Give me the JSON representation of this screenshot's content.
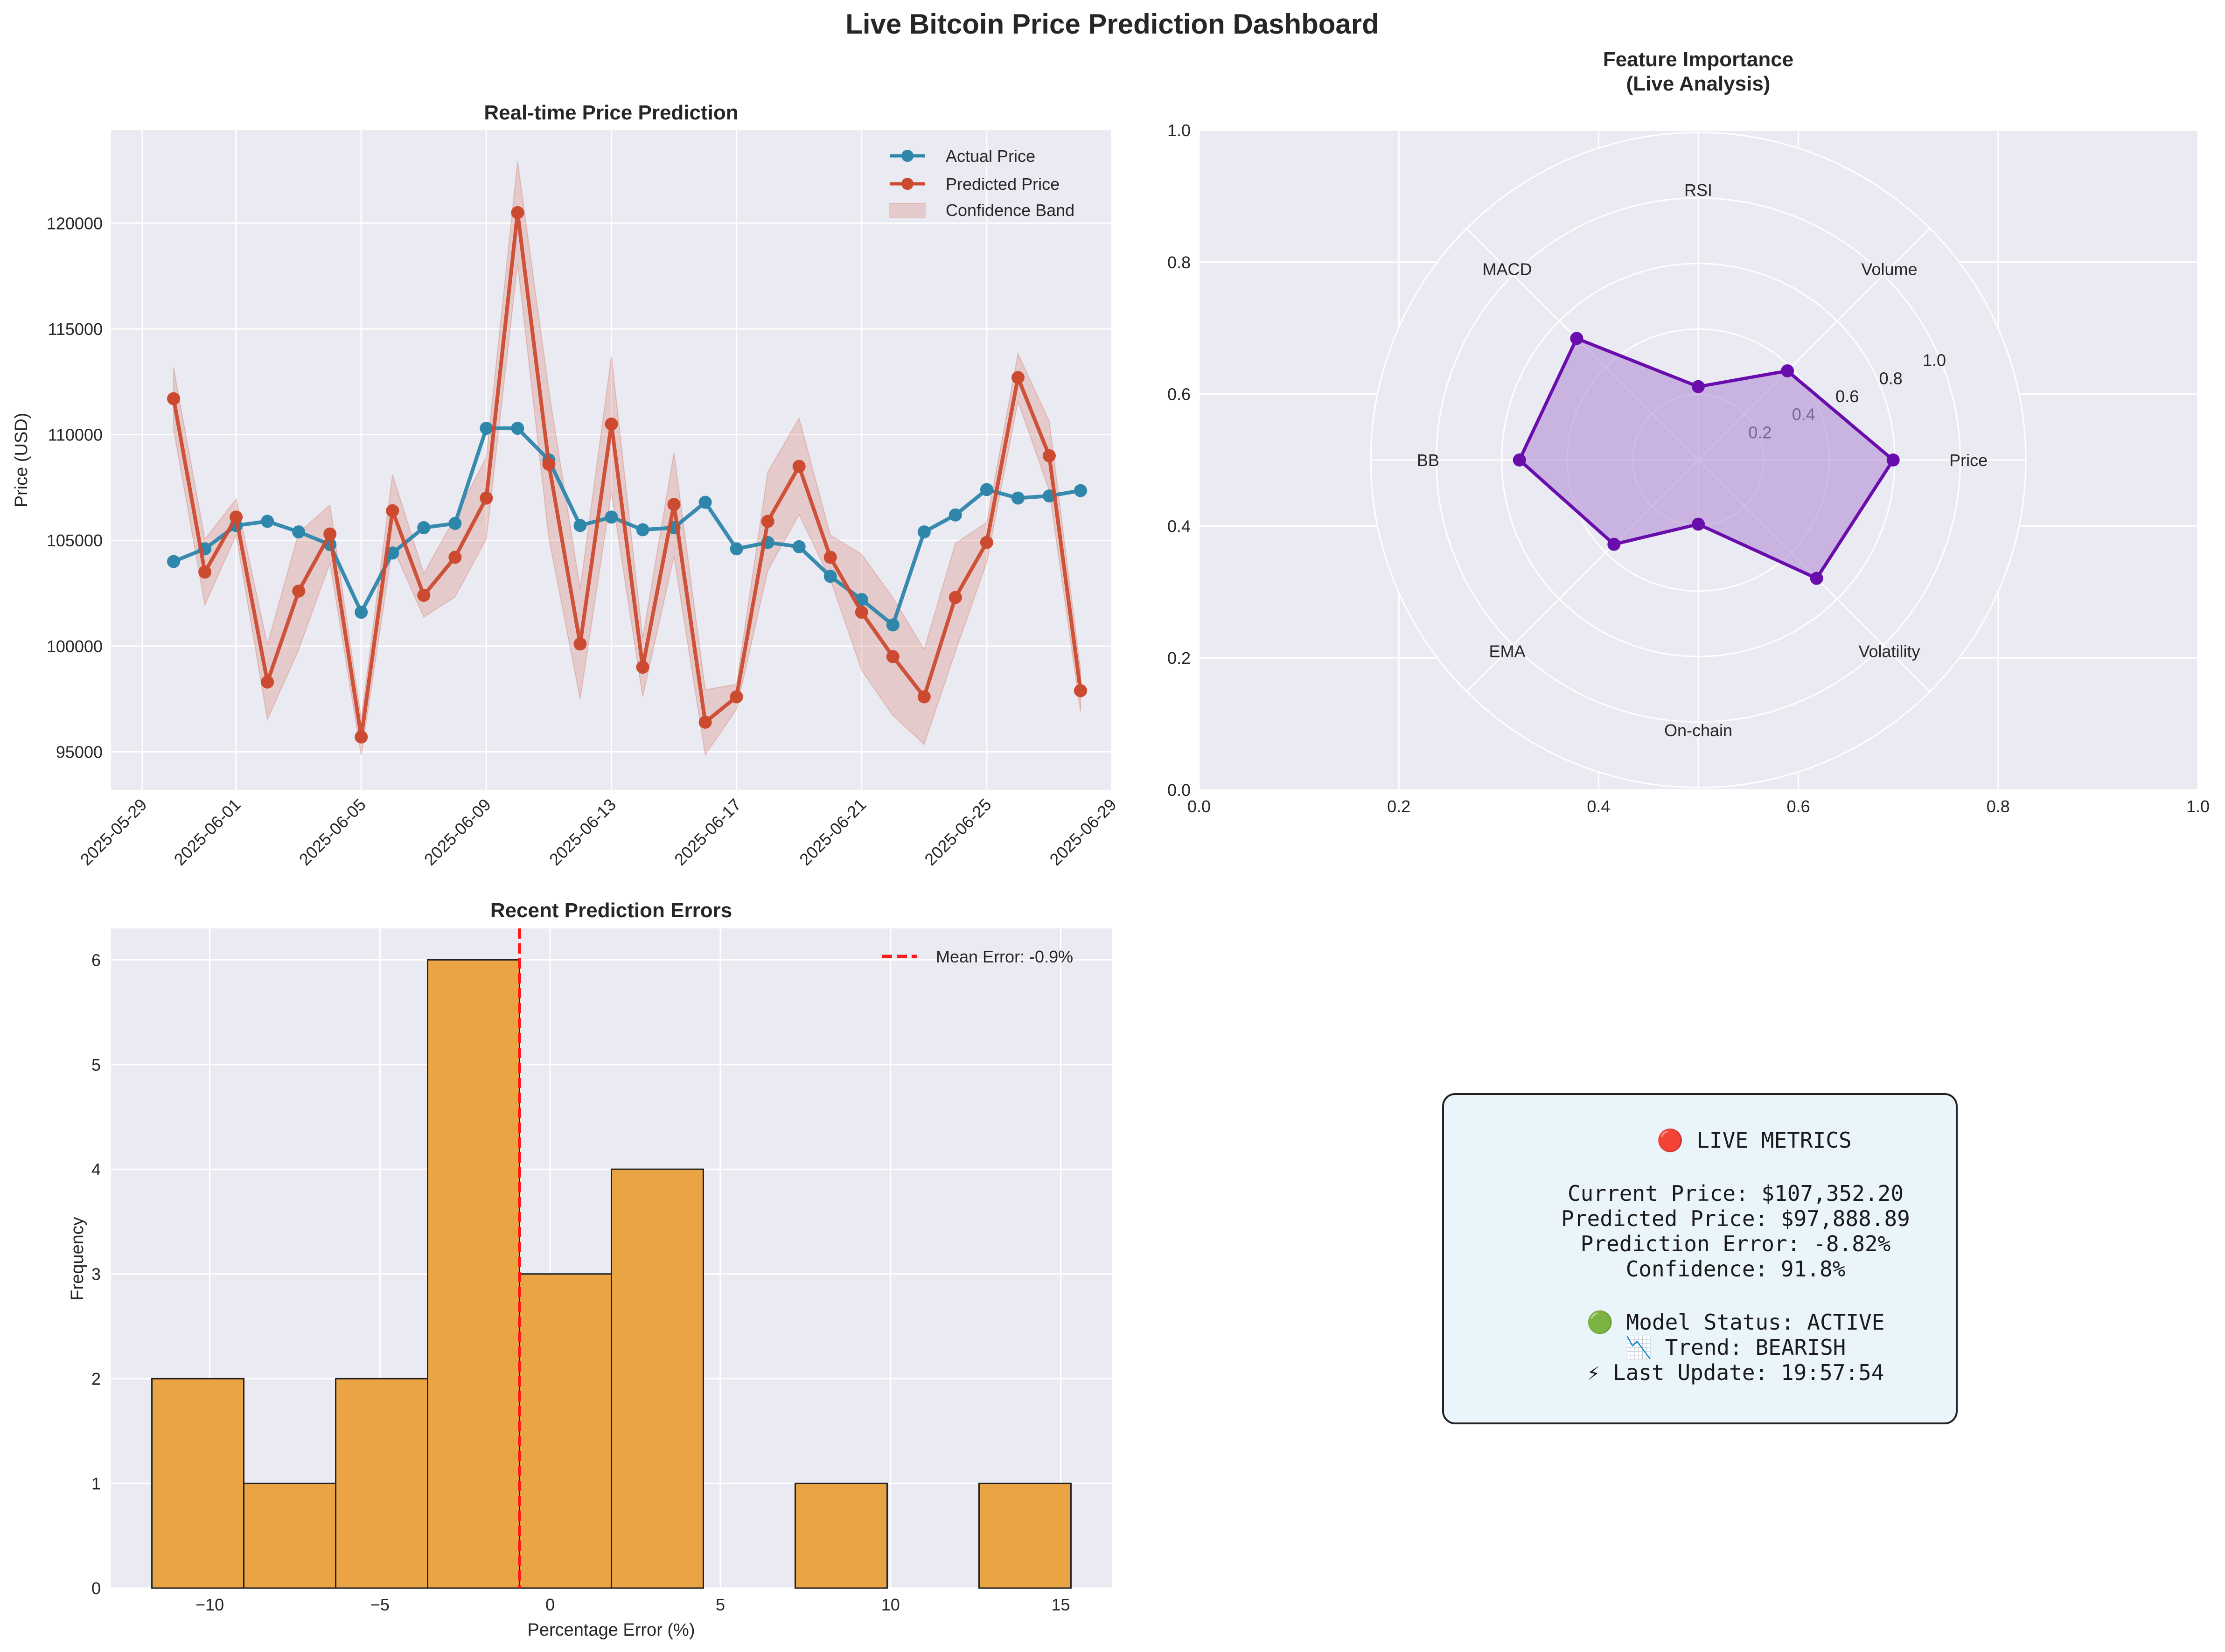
{
  "page": {
    "title": "Live Bitcoin Price Prediction Dashboard"
  },
  "chart_data": [
    {
      "type": "line",
      "title": "Real-time Price Prediction",
      "xlabel": "",
      "ylabel": "Price (USD)",
      "ylim": [
        93200,
        124400
      ],
      "x_range": [
        "2025-05-28",
        "2025-06-29"
      ],
      "x_ticks": [
        "2025-05-29",
        "2025-06-01",
        "2025-06-05",
        "2025-06-09",
        "2025-06-13",
        "2025-06-17",
        "2025-06-21",
        "2025-06-25",
        "2025-06-29"
      ],
      "y_ticks": [
        95000,
        100000,
        105000,
        110000,
        115000,
        120000
      ],
      "y_tick_labels": [
        "95000",
        "100000",
        "105000",
        "110000",
        "115000",
        "120000"
      ],
      "x": [
        "2025-05-30",
        "2025-05-31",
        "2025-06-01",
        "2025-06-02",
        "2025-06-03",
        "2025-06-04",
        "2025-06-05",
        "2025-06-06",
        "2025-06-07",
        "2025-06-08",
        "2025-06-09",
        "2025-06-10",
        "2025-06-11",
        "2025-06-12",
        "2025-06-13",
        "2025-06-14",
        "2025-06-15",
        "2025-06-16",
        "2025-06-17",
        "2025-06-18",
        "2025-06-19",
        "2025-06-20",
        "2025-06-21",
        "2025-06-22",
        "2025-06-23",
        "2025-06-24",
        "2025-06-25",
        "2025-06-26",
        "2025-06-27",
        "2025-06-28"
      ],
      "series": [
        {
          "name": "Actual Price",
          "color": "#2e86ab",
          "values": [
            104000,
            104600,
            105700,
            105900,
            105400,
            104800,
            101600,
            104400,
            105600,
            105800,
            110300,
            110300,
            108800,
            105700,
            106100,
            105500,
            105600,
            106800,
            104600,
            104900,
            104700,
            103300,
            102200,
            101000,
            105400,
            106200,
            107400,
            107000,
            107100,
            107352
          ]
        },
        {
          "name": "Predicted Price",
          "color": "#cc4a30",
          "values": [
            111700,
            103500,
            106100,
            98300,
            102600,
            105300,
            95700,
            106400,
            102400,
            104200,
            107000,
            120500,
            108600,
            100100,
            110500,
            99000,
            106700,
            96400,
            97600,
            105900,
            108500,
            104200,
            101600,
            99500,
            97600,
            102300,
            104900,
            112700,
            109000,
            97889
          ]
        }
      ],
      "band": {
        "name": "Confidence Band",
        "color": "#cc4a30",
        "rel_width": [
          0.013,
          0.015,
          0.008,
          0.018,
          0.027,
          0.013,
          0.009,
          0.016,
          0.01,
          0.018,
          0.018,
          0.02,
          0.032,
          0.026,
          0.029,
          0.014,
          0.023,
          0.016,
          0.006,
          0.022,
          0.021,
          0.01,
          0.027,
          0.028,
          0.023,
          0.025,
          0.009,
          0.01,
          0.015,
          0.01
        ]
      },
      "legend_position": "top-right",
      "grid": true
    },
    {
      "type": "radar",
      "title": "Feature Importance\n(Live Analysis)",
      "categories": [
        "Price",
        "Volume",
        "RSI",
        "MACD",
        "BB",
        "EMA",
        "On-chain",
        "Volatility"
      ],
      "values": [
        0.85,
        0.55,
        0.32,
        0.75,
        0.78,
        0.52,
        0.28,
        0.73
      ],
      "r_ticks": [
        "0.2",
        "0.4",
        "0.6",
        "0.8",
        "1.0"
      ],
      "cartesian_ticks": [
        "0.0",
        "0.2",
        "0.4",
        "0.6",
        "0.8",
        "1.0"
      ],
      "color": "#6a0dad",
      "fill_color": "#b38fd6",
      "grid": true
    },
    {
      "type": "histogram",
      "title": "Recent Prediction Errors",
      "xlabel": "Percentage Error (%)",
      "ylabel": "Frequency",
      "bin_edges": [
        -11.7,
        -9.0,
        -6.3,
        -3.6,
        -0.9,
        1.8,
        4.5,
        7.2,
        9.9,
        12.6,
        15.3
      ],
      "counts": [
        2,
        1,
        2,
        6,
        3,
        4,
        0,
        1,
        0,
        1
      ],
      "xlim": [
        -12.9,
        16.5
      ],
      "ylim": [
        0,
        6.3
      ],
      "x_ticks": [
        "−10",
        "−5",
        "0",
        "5",
        "10",
        "15"
      ],
      "x_tick_values": [
        -10,
        -5,
        0,
        5,
        10,
        15
      ],
      "y_ticks": [
        "0",
        "1",
        "2",
        "3",
        "4",
        "5",
        "6"
      ],
      "mean_error": -0.9,
      "mean_label": "Mean Error: -0.9%",
      "bar_color": "#eba444",
      "mean_color": "#ff1a1a",
      "legend_position": "top-right",
      "grid": true
    }
  ],
  "metrics": {
    "header": "🔴 LIVE METRICS",
    "lines": [
      "Current Price: $107,352.20",
      "Predicted Price: $97,888.89",
      "Prediction Error: -8.82%",
      "Confidence: 91.8%"
    ],
    "status_lines": [
      "🟢 Model Status: ACTIVE",
      "📉 Trend: BEARISH",
      "⚡ Last Update: 19:57:54"
    ]
  }
}
